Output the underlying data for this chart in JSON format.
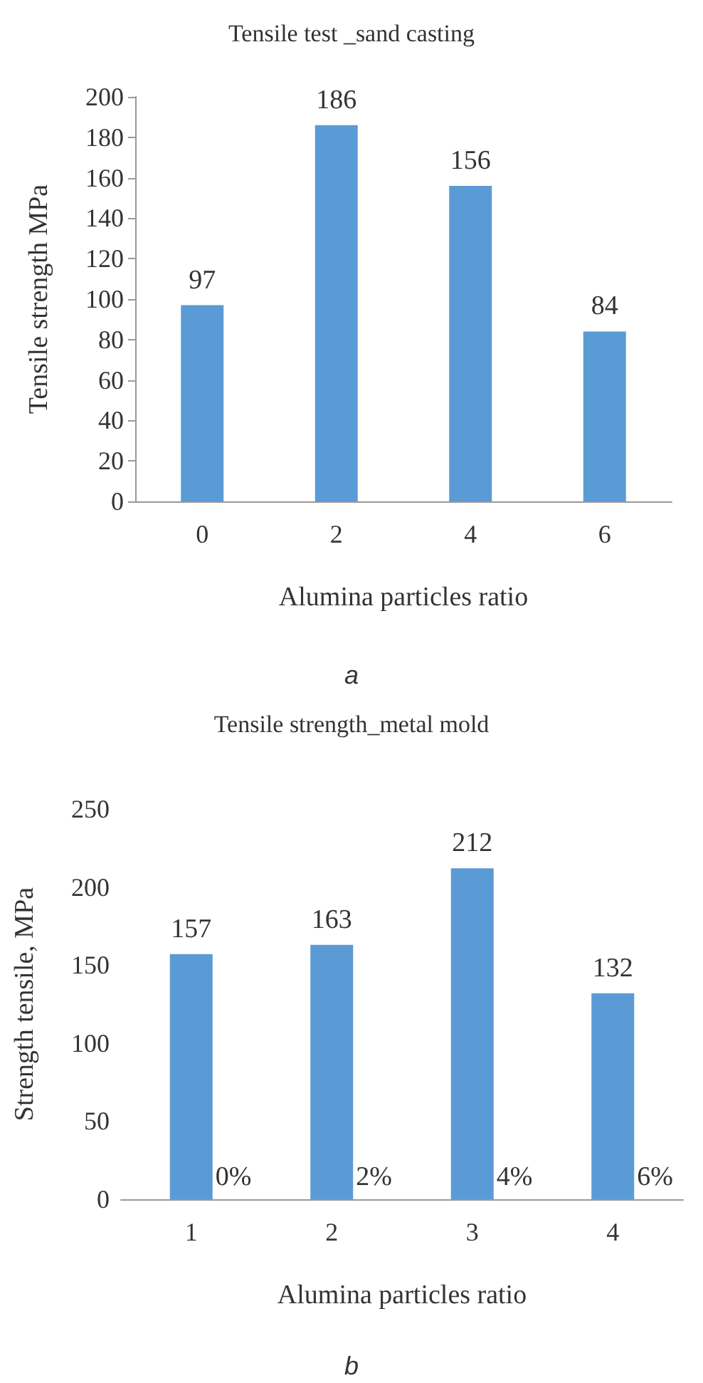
{
  "chart_data": [
    {
      "type": "bar",
      "title": "Tensile test _sand casting",
      "xlabel": "Alumina particles ratio",
      "ylabel": "Tensile strength MPa",
      "categories": [
        "0",
        "2",
        "4",
        "6"
      ],
      "values": [
        97,
        186,
        156,
        84
      ],
      "color": "#5b9bd5",
      "ylim": [
        0,
        200
      ],
      "yticks": [
        0,
        20,
        40,
        60,
        80,
        100,
        120,
        140,
        160,
        180,
        200
      ],
      "grid": false,
      "data_labels": true,
      "annotations": [
        "a"
      ]
    },
    {
      "type": "bar",
      "title": "Tensile strength_metal mold",
      "xlabel": "Alumina particles ratio",
      "ylabel": "Strength tensile, MPa",
      "categories": [
        "1",
        "2",
        "3",
        "4"
      ],
      "values": [
        157,
        163,
        212,
        132
      ],
      "color": "#5b9bd5",
      "ylim": [
        0,
        250
      ],
      "yticks": [
        0,
        50,
        100,
        150,
        200,
        250
      ],
      "grid": false,
      "data_labels": true,
      "annotations": [
        "0%",
        "2%",
        "4%",
        "6%",
        "b"
      ]
    }
  ]
}
